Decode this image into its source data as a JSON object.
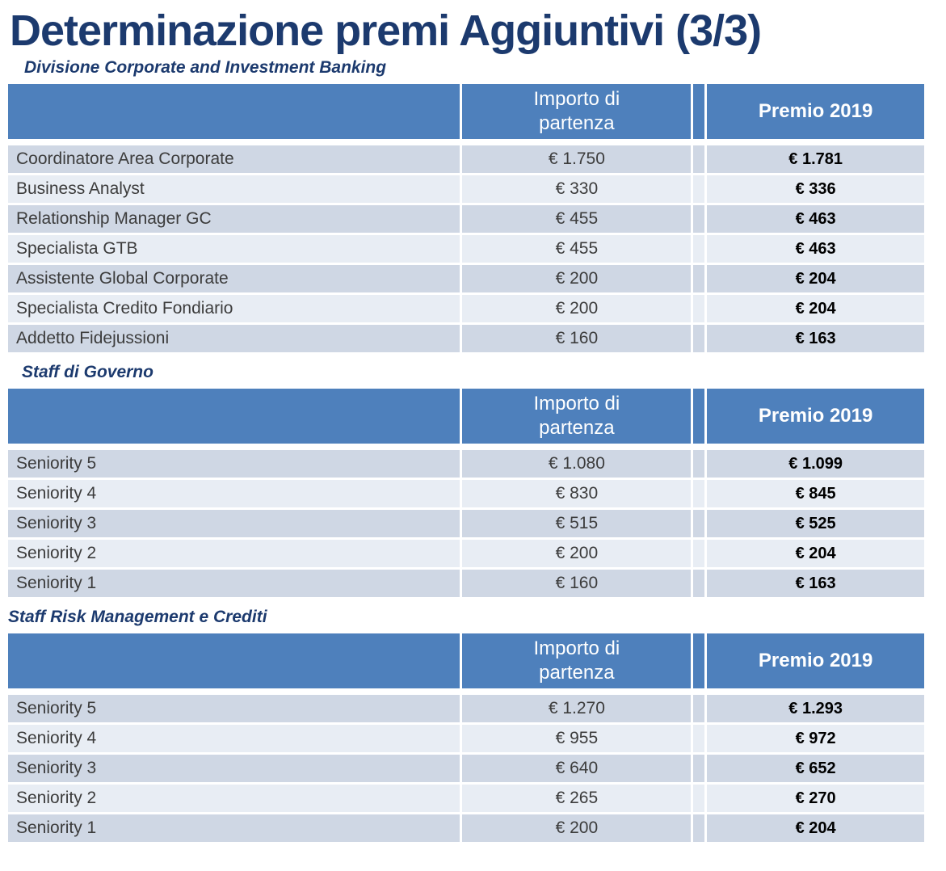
{
  "page": {
    "title": "Determinazione premi Aggiuntivi (3/3)"
  },
  "colors": {
    "title_navy": "#1C3A6E",
    "header_blue": "#4E80BC",
    "row_dark": "#CFD7E4",
    "row_light": "#E8EDF4",
    "header_text": "#FFFFFF",
    "premio_text": "#000000"
  },
  "tables": [
    {
      "section": "Divisione Corporate and Investment Banking",
      "headers": {
        "role": "",
        "importo": "Importo di partenza",
        "premio": "Premio 2019"
      },
      "rows": [
        {
          "label": "Coordinatore Area Corporate",
          "importo": "€ 1.750",
          "premio": "€ 1.781"
        },
        {
          "label": "Business Analyst",
          "importo": "€ 330",
          "premio": "€ 336"
        },
        {
          "label": "Relationship Manager GC",
          "importo": "€ 455",
          "premio": "€ 463"
        },
        {
          "label": "Specialista GTB",
          "importo": "€ 455",
          "premio": "€ 463"
        },
        {
          "label": "Assistente Global Corporate",
          "importo": "€ 200",
          "premio": "€ 204"
        },
        {
          "label": "Specialista Credito Fondiario",
          "importo": "€ 200",
          "premio": "€ 204"
        },
        {
          "label": "Addetto Fidejussioni",
          "importo": "€ 160",
          "premio": "€ 163"
        }
      ]
    },
    {
      "section": "Staff di Governo",
      "headers": {
        "role": "",
        "importo": "Importo di partenza",
        "premio": "Premio 2019"
      },
      "rows": [
        {
          "label": "Seniority 5",
          "importo": "€ 1.080",
          "premio": "€ 1.099"
        },
        {
          "label": "Seniority 4",
          "importo": "€ 830",
          "premio": "€ 845"
        },
        {
          "label": "Seniority 3",
          "importo": "€ 515",
          "premio": "€ 525"
        },
        {
          "label": "Seniority 2",
          "importo": "€ 200",
          "premio": "€ 204"
        },
        {
          "label": "Seniority 1",
          "importo": "€ 160",
          "premio": "€ 163"
        }
      ]
    },
    {
      "section": "Staff Risk Management e Crediti",
      "headers": {
        "role": "",
        "importo": "Importo di partenza",
        "premio": "Premio 2019"
      },
      "rows": [
        {
          "label": "Seniority 5",
          "importo": "€ 1.270",
          "premio": "€ 1.293"
        },
        {
          "label": "Seniority 4",
          "importo": "€ 955",
          "premio": "€ 972"
        },
        {
          "label": "Seniority 3",
          "importo": "€ 640",
          "premio": "€ 652"
        },
        {
          "label": "Seniority 2",
          "importo": "€ 265",
          "premio": "€ 270"
        },
        {
          "label": "Seniority 1",
          "importo": "€ 200",
          "premio": "€ 204"
        }
      ]
    }
  ]
}
